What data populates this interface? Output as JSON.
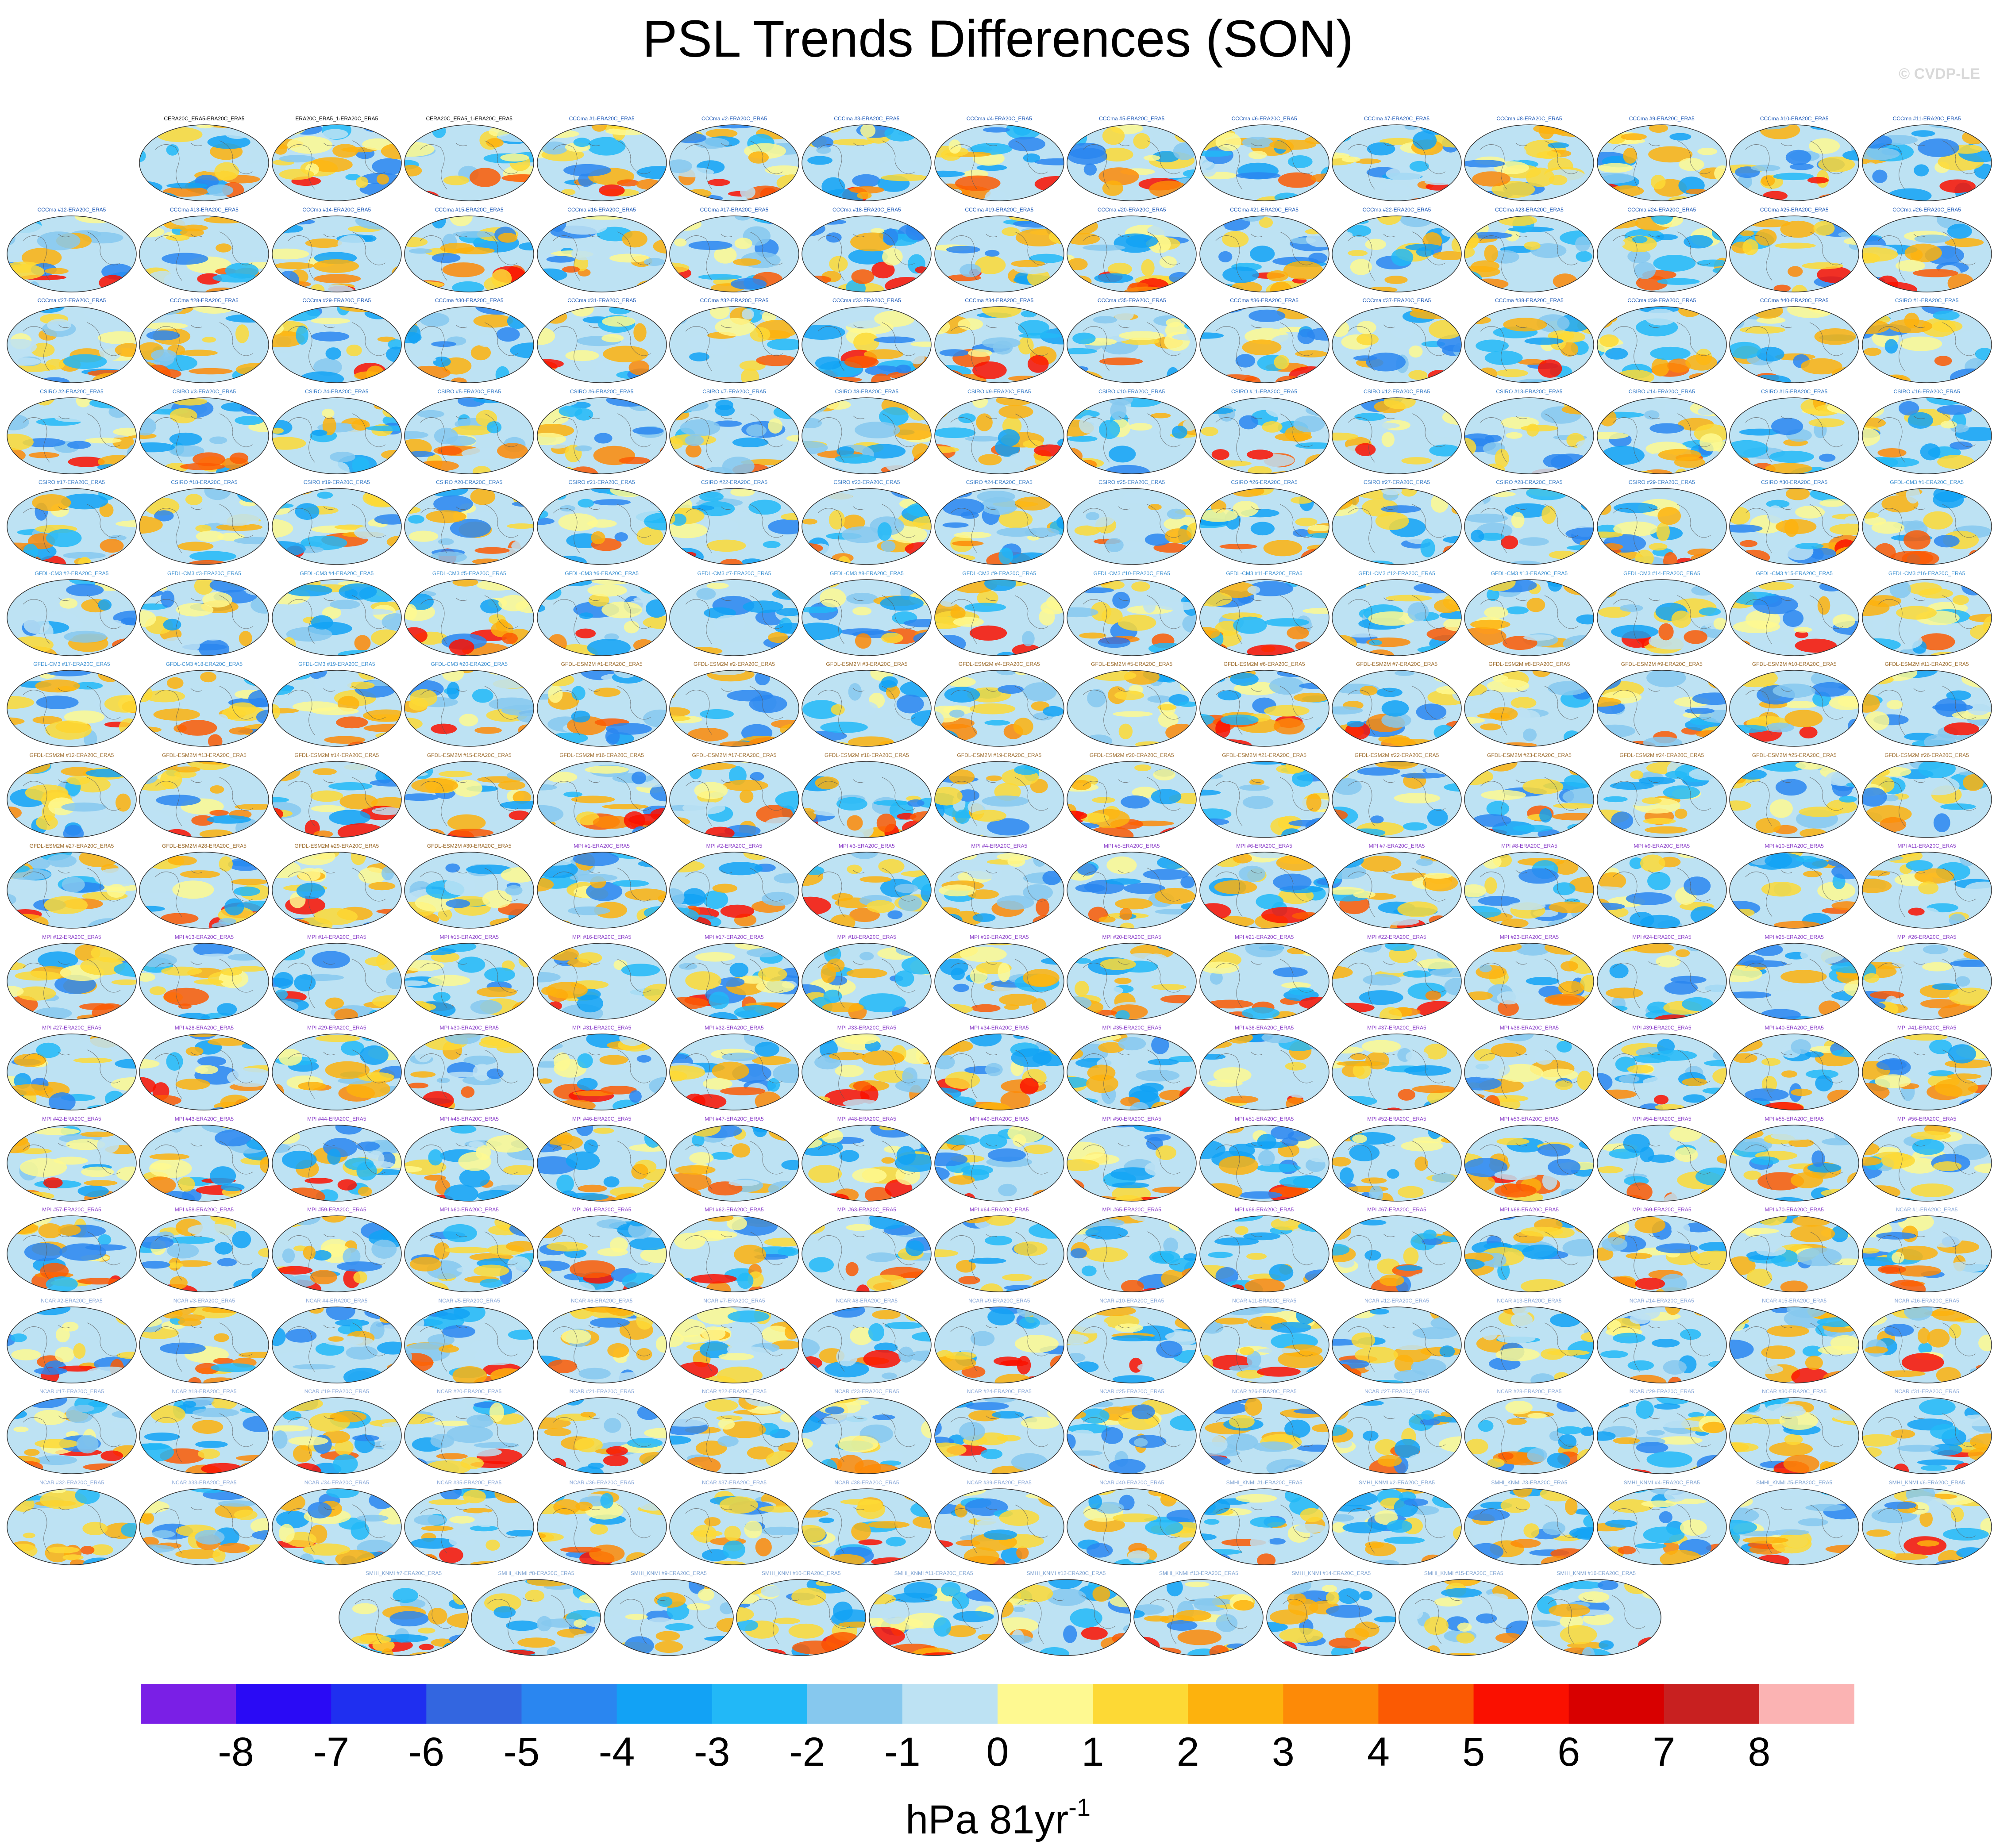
{
  "figure": {
    "title": "PSL Trends Differences (SON)",
    "credit": "© CVDP-LE",
    "units_main": "hPa 81yr",
    "units_exp": "-1"
  },
  "colorbar": {
    "colors": [
      "#7a1fe6",
      "#2a0af5",
      "#1f2ff0",
      "#3366e0",
      "#2a86f0",
      "#12a2f5",
      "#22b8f7",
      "#86c8ee",
      "#bde2f3",
      "#fef991",
      "#fdd935",
      "#fdb20d",
      "#fd8a07",
      "#fb5a03",
      "#fa1000",
      "#d80000",
      "#c82020",
      "#fbb3b3"
    ],
    "ticks": [
      "-8",
      "-7",
      "-6",
      "-5",
      "-4",
      "-3",
      "-2",
      "-1",
      "0",
      "1",
      "2",
      "3",
      "4",
      "5",
      "6",
      "7",
      "8"
    ]
  },
  "panel_title_colors": {
    "ERA": "#000000",
    "CCCma": "#1a56b5",
    "CSIRO": "#2c74c4",
    "GFDL-CM3": "#3a8fd1",
    "GFDL-ESM2M": "#9c6b2b",
    "MPI": "#8b3fc9",
    "NCAR": "#8aa8d8",
    "SMHI": "#7aa0d0"
  },
  "rows": [
    [
      "CERA20C_ERA5-ERA20C_ERA5",
      "ERA20C_ERA5_1-ERA20C_ERA5",
      "CERA20C_ERA5_1-ERA20C_ERA5",
      "CCCma #1-ERA20C_ERA5",
      "CCCma #2-ERA20C_ERA5",
      "CCCma #3-ERA20C_ERA5",
      "CCCma #4-ERA20C_ERA5",
      "CCCma #5-ERA20C_ERA5",
      "CCCma #6-ERA20C_ERA5",
      "CCCma #7-ERA20C_ERA5",
      "CCCma #8-ERA20C_ERA5",
      "CCCma #9-ERA20C_ERA5",
      "CCCma #10-ERA20C_ERA5",
      "CCCma #11-ERA20C_ERA5"
    ],
    [
      "CCCma #12-ERA20C_ERA5",
      "CCCma #13-ERA20C_ERA5",
      "CCCma #14-ERA20C_ERA5",
      "CCCma #15-ERA20C_ERA5",
      "CCCma #16-ERA20C_ERA5",
      "CCCma #17-ERA20C_ERA5",
      "CCCma #18-ERA20C_ERA5",
      "CCCma #19-ERA20C_ERA5",
      "CCCma #20-ERA20C_ERA5",
      "CCCma #21-ERA20C_ERA5",
      "CCCma #22-ERA20C_ERA5",
      "CCCma #23-ERA20C_ERA5",
      "CCCma #24-ERA20C_ERA5",
      "CCCma #25-ERA20C_ERA5",
      "CCCma #26-ERA20C_ERA5"
    ],
    [
      "CCCma #27-ERA20C_ERA5",
      "CCCma #28-ERA20C_ERA5",
      "CCCma #29-ERA20C_ERA5",
      "CCCma #30-ERA20C_ERA5",
      "CCCma #31-ERA20C_ERA5",
      "CCCma #32-ERA20C_ERA5",
      "CCCma #33-ERA20C_ERA5",
      "CCCma #34-ERA20C_ERA5",
      "CCCma #35-ERA20C_ERA5",
      "CCCma #36-ERA20C_ERA5",
      "CCCma #37-ERA20C_ERA5",
      "CCCma #38-ERA20C_ERA5",
      "CCCma #39-ERA20C_ERA5",
      "CCCma #40-ERA20C_ERA5",
      "CSIRO #1-ERA20C_ERA5"
    ],
    [
      "CSIRO #2-ERA20C_ERA5",
      "CSIRO #3-ERA20C_ERA5",
      "CSIRO #4-ERA20C_ERA5",
      "CSIRO #5-ERA20C_ERA5",
      "CSIRO #6-ERA20C_ERA5",
      "CSIRO #7-ERA20C_ERA5",
      "CSIRO #8-ERA20C_ERA5",
      "CSIRO #9-ERA20C_ERA5",
      "CSIRO #10-ERA20C_ERA5",
      "CSIRO #11-ERA20C_ERA5",
      "CSIRO #12-ERA20C_ERA5",
      "CSIRO #13-ERA20C_ERA5",
      "CSIRO #14-ERA20C_ERA5",
      "CSIRO #15-ERA20C_ERA5",
      "CSIRO #16-ERA20C_ERA5"
    ],
    [
      "CSIRO #17-ERA20C_ERA5",
      "CSIRO #18-ERA20C_ERA5",
      "CSIRO #19-ERA20C_ERA5",
      "CSIRO #20-ERA20C_ERA5",
      "CSIRO #21-ERA20C_ERA5",
      "CSIRO #22-ERA20C_ERA5",
      "CSIRO #23-ERA20C_ERA5",
      "CSIRO #24-ERA20C_ERA5",
      "CSIRO #25-ERA20C_ERA5",
      "CSIRO #26-ERA20C_ERA5",
      "CSIRO #27-ERA20C_ERA5",
      "CSIRO #28-ERA20C_ERA5",
      "CSIRO #29-ERA20C_ERA5",
      "CSIRO #30-ERA20C_ERA5",
      "GFDL-CM3 #1-ERA20C_ERA5"
    ],
    [
      "GFDL-CM3 #2-ERA20C_ERA5",
      "GFDL-CM3 #3-ERA20C_ERA5",
      "GFDL-CM3 #4-ERA20C_ERA5",
      "GFDL-CM3 #5-ERA20C_ERA5",
      "GFDL-CM3 #6-ERA20C_ERA5",
      "GFDL-CM3 #7-ERA20C_ERA5",
      "GFDL-CM3 #8-ERA20C_ERA5",
      "GFDL-CM3 #9-ERA20C_ERA5",
      "GFDL-CM3 #10-ERA20C_ERA5",
      "GFDL-CM3 #11-ERA20C_ERA5",
      "GFDL-CM3 #12-ERA20C_ERA5",
      "GFDL-CM3 #13-ERA20C_ERA5",
      "GFDL-CM3 #14-ERA20C_ERA5",
      "GFDL-CM3 #15-ERA20C_ERA5",
      "GFDL-CM3 #16-ERA20C_ERA5"
    ],
    [
      "GFDL-CM3 #17-ERA20C_ERA5",
      "GFDL-CM3 #18-ERA20C_ERA5",
      "GFDL-CM3 #19-ERA20C_ERA5",
      "GFDL-CM3 #20-ERA20C_ERA5",
      "GFDL-ESM2M #1-ERA20C_ERA5",
      "GFDL-ESM2M #2-ERA20C_ERA5",
      "GFDL-ESM2M #3-ERA20C_ERA5",
      "GFDL-ESM2M #4-ERA20C_ERA5",
      "GFDL-ESM2M #5-ERA20C_ERA5",
      "GFDL-ESM2M #6-ERA20C_ERA5",
      "GFDL-ESM2M #7-ERA20C_ERA5",
      "GFDL-ESM2M #8-ERA20C_ERA5",
      "GFDL-ESM2M #9-ERA20C_ERA5",
      "GFDL-ESM2M #10-ERA20C_ERA5",
      "GFDL-ESM2M #11-ERA20C_ERA5"
    ],
    [
      "GFDL-ESM2M #12-ERA20C_ERA5",
      "GFDL-ESM2M #13-ERA20C_ERA5",
      "GFDL-ESM2M #14-ERA20C_ERA5",
      "GFDL-ESM2M #15-ERA20C_ERA5",
      "GFDL-ESM2M #16-ERA20C_ERA5",
      "GFDL-ESM2M #17-ERA20C_ERA5",
      "GFDL-ESM2M #18-ERA20C_ERA5",
      "GFDL-ESM2M #19-ERA20C_ERA5",
      "GFDL-ESM2M #20-ERA20C_ERA5",
      "GFDL-ESM2M #21-ERA20C_ERA5",
      "GFDL-ESM2M #22-ERA20C_ERA5",
      "GFDL-ESM2M #23-ERA20C_ERA5",
      "GFDL-ESM2M #24-ERA20C_ERA5",
      "GFDL-ESM2M #25-ERA20C_ERA5",
      "GFDL-ESM2M #26-ERA20C_ERA5"
    ],
    [
      "GFDL-ESM2M #27-ERA20C_ERA5",
      "GFDL-ESM2M #28-ERA20C_ERA5",
      "GFDL-ESM2M #29-ERA20C_ERA5",
      "GFDL-ESM2M #30-ERA20C_ERA5",
      "MPI #1-ERA20C_ERA5",
      "MPI #2-ERA20C_ERA5",
      "MPI #3-ERA20C_ERA5",
      "MPI #4-ERA20C_ERA5",
      "MPI #5-ERA20C_ERA5",
      "MPI #6-ERA20C_ERA5",
      "MPI #7-ERA20C_ERA5",
      "MPI #8-ERA20C_ERA5",
      "MPI #9-ERA20C_ERA5",
      "MPI #10-ERA20C_ERA5",
      "MPI #11-ERA20C_ERA5"
    ],
    [
      "MPI #12-ERA20C_ERA5",
      "MPI #13-ERA20C_ERA5",
      "MPI #14-ERA20C_ERA5",
      "MPI #15-ERA20C_ERA5",
      "MPI #16-ERA20C_ERA5",
      "MPI #17-ERA20C_ERA5",
      "MPI #18-ERA20C_ERA5",
      "MPI #19-ERA20C_ERA5",
      "MPI #20-ERA20C_ERA5",
      "MPI #21-ERA20C_ERA5",
      "MPI #22-ERA20C_ERA5",
      "MPI #23-ERA20C_ERA5",
      "MPI #24-ERA20C_ERA5",
      "MPI #25-ERA20C_ERA5",
      "MPI #26-ERA20C_ERA5"
    ],
    [
      "MPI #27-ERA20C_ERA5",
      "MPI #28-ERA20C_ERA5",
      "MPI #29-ERA20C_ERA5",
      "MPI #30-ERA20C_ERA5",
      "MPI #31-ERA20C_ERA5",
      "MPI #32-ERA20C_ERA5",
      "MPI #33-ERA20C_ERA5",
      "MPI #34-ERA20C_ERA5",
      "MPI #35-ERA20C_ERA5",
      "MPI #36-ERA20C_ERA5",
      "MPI #37-ERA20C_ERA5",
      "MPI #38-ERA20C_ERA5",
      "MPI #39-ERA20C_ERA5",
      "MPI #40-ERA20C_ERA5",
      "MPI #41-ERA20C_ERA5"
    ],
    [
      "MPI #42-ERA20C_ERA5",
      "MPI #43-ERA20C_ERA5",
      "MPI #44-ERA20C_ERA5",
      "MPI #45-ERA20C_ERA5",
      "MPI #46-ERA20C_ERA5",
      "MPI #47-ERA20C_ERA5",
      "MPI #48-ERA20C_ERA5",
      "MPI #49-ERA20C_ERA5",
      "MPI #50-ERA20C_ERA5",
      "MPI #51-ERA20C_ERA5",
      "MPI #52-ERA20C_ERA5",
      "MPI #53-ERA20C_ERA5",
      "MPI #54-ERA20C_ERA5",
      "MPI #55-ERA20C_ERA5",
      "MPI #56-ERA20C_ERA5"
    ],
    [
      "MPI #57-ERA20C_ERA5",
      "MPI #58-ERA20C_ERA5",
      "MPI #59-ERA20C_ERA5",
      "MPI #60-ERA20C_ERA5",
      "MPI #61-ERA20C_ERA5",
      "MPI #62-ERA20C_ERA5",
      "MPI #63-ERA20C_ERA5",
      "MPI #64-ERA20C_ERA5",
      "MPI #65-ERA20C_ERA5",
      "MPI #66-ERA20C_ERA5",
      "MPI #67-ERA20C_ERA5",
      "MPI #68-ERA20C_ERA5",
      "MPI #69-ERA20C_ERA5",
      "MPI #70-ERA20C_ERA5",
      "NCAR #1-ERA20C_ERA5"
    ],
    [
      "NCAR #2-ERA20C_ERA5",
      "NCAR #3-ERA20C_ERA5",
      "NCAR #4-ERA20C_ERA5",
      "NCAR #5-ERA20C_ERA5",
      "NCAR #6-ERA20C_ERA5",
      "NCAR #7-ERA20C_ERA5",
      "NCAR #8-ERA20C_ERA5",
      "NCAR #9-ERA20C_ERA5",
      "NCAR #10-ERA20C_ERA5",
      "NCAR #11-ERA20C_ERA5",
      "NCAR #12-ERA20C_ERA5",
      "NCAR #13-ERA20C_ERA5",
      "NCAR #14-ERA20C_ERA5",
      "NCAR #15-ERA20C_ERA5",
      "NCAR #16-ERA20C_ERA5"
    ],
    [
      "NCAR #17-ERA20C_ERA5",
      "NCAR #18-ERA20C_ERA5",
      "NCAR #19-ERA20C_ERA5",
      "NCAR #20-ERA20C_ERA5",
      "NCAR #21-ERA20C_ERA5",
      "NCAR #22-ERA20C_ERA5",
      "NCAR #23-ERA20C_ERA5",
      "NCAR #24-ERA20C_ERA5",
      "NCAR #25-ERA20C_ERA5",
      "NCAR #26-ERA20C_ERA5",
      "NCAR #27-ERA20C_ERA5",
      "NCAR #28-ERA20C_ERA5",
      "NCAR #29-ERA20C_ERA5",
      "NCAR #30-ERA20C_ERA5",
      "NCAR #31-ERA20C_ERA5"
    ],
    [
      "NCAR #32-ERA20C_ERA5",
      "NCAR #33-ERA20C_ERA5",
      "NCAR #34-ERA20C_ERA5",
      "NCAR #35-ERA20C_ERA5",
      "NCAR #36-ERA20C_ERA5",
      "NCAR #37-ERA20C_ERA5",
      "NCAR #38-ERA20C_ERA5",
      "NCAR #39-ERA20C_ERA5",
      "NCAR #40-ERA20C_ERA5",
      "SMHI_KNMI #1-ERA20C_ERA5",
      "SMHI_KNMI #2-ERA20C_ERA5",
      "SMHI_KNMI #3-ERA20C_ERA5",
      "SMHI_KNMI #4-ERA20C_ERA5",
      "SMHI_KNMI #5-ERA20C_ERA5",
      "SMHI_KNMI #6-ERA20C_ERA5"
    ],
    [
      "SMHI_KNMI #7-ERA20C_ERA5",
      "SMHI_KNMI #8-ERA20C_ERA5",
      "SMHI_KNMI #9-ERA20C_ERA5",
      "SMHI_KNMI #10-ERA20C_ERA5",
      "SMHI_KNMI #11-ERA20C_ERA5",
      "SMHI_KNMI #12-ERA20C_ERA5",
      "SMHI_KNMI #13-ERA20C_ERA5",
      "SMHI_KNMI #14-ERA20C_ERA5",
      "SMHI_KNMI #15-ERA20C_ERA5",
      "SMHI_KNMI #16-ERA20C_ERA5"
    ]
  ]
}
